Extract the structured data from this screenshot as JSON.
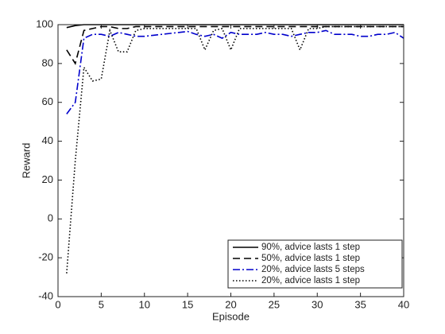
{
  "chart_data": {
    "type": "line",
    "x_label": "Episode",
    "y_label": "Reward",
    "x": [
      1,
      2,
      3,
      4,
      5,
      6,
      7,
      8,
      9,
      10,
      11,
      12,
      13,
      14,
      15,
      16,
      17,
      18,
      19,
      20,
      21,
      22,
      23,
      24,
      25,
      26,
      27,
      28,
      29,
      30,
      31,
      32,
      33,
      34,
      35,
      36,
      37,
      38,
      39,
      40
    ],
    "series": [
      {
        "name": "90%, advice lasts 1 step",
        "color": "#000000",
        "style": "solid",
        "values": [
          98.5,
          99.5,
          100,
          100,
          100,
          100,
          100,
          100,
          100,
          100,
          100,
          100,
          100,
          100,
          100,
          100,
          100,
          100,
          100,
          100,
          100,
          100,
          100,
          100,
          100,
          100,
          100,
          100,
          100,
          100,
          100,
          100,
          100,
          100,
          100,
          100,
          100,
          100,
          100,
          100
        ]
      },
      {
        "name": "50%, advice lasts 1 step",
        "color": "#000000",
        "style": "dashed",
        "values": [
          87,
          80,
          97,
          98,
          99,
          99,
          98,
          98,
          99,
          99,
          99,
          99,
          99,
          99,
          99,
          99,
          99,
          99,
          99,
          99,
          99,
          99,
          99,
          99,
          99,
          99,
          99,
          99,
          99,
          99,
          99,
          99,
          99,
          99,
          99,
          99,
          99,
          99,
          99,
          99
        ]
      },
      {
        "name": "20%, advice lasts 5 steps",
        "color": "#0000cc",
        "style": "dashdot",
        "values": [
          54,
          60,
          93,
          95,
          95,
          94,
          96,
          95,
          94,
          94,
          94.5,
          95,
          95.5,
          96,
          96.5,
          95,
          94,
          95,
          93,
          96,
          95,
          95,
          95,
          96,
          95,
          95,
          94,
          95,
          96,
          96,
          97,
          95,
          95,
          95,
          94,
          94,
          95,
          95,
          96,
          93
        ]
      },
      {
        "name": "20%, advice lasts 1 step",
        "color": "#000000",
        "style": "dotted",
        "values": [
          -28,
          30,
          78,
          71,
          72,
          97,
          86,
          86,
          97,
          98,
          98,
          98,
          98,
          98,
          98,
          98,
          87,
          97,
          98,
          87,
          98,
          98,
          98,
          98,
          98,
          98,
          98,
          87,
          98,
          98,
          99,
          99,
          99,
          99,
          99,
          99,
          99,
          99,
          99,
          99
        ]
      }
    ],
    "xlim": [
      0,
      40
    ],
    "xticks": [
      0,
      5,
      10,
      15,
      20,
      25,
      30,
      35,
      40
    ],
    "ylim": [
      -40,
      100
    ],
    "yticks": [
      -40,
      -20,
      0,
      20,
      40,
      60,
      80,
      100
    ],
    "legend": "lower right"
  }
}
